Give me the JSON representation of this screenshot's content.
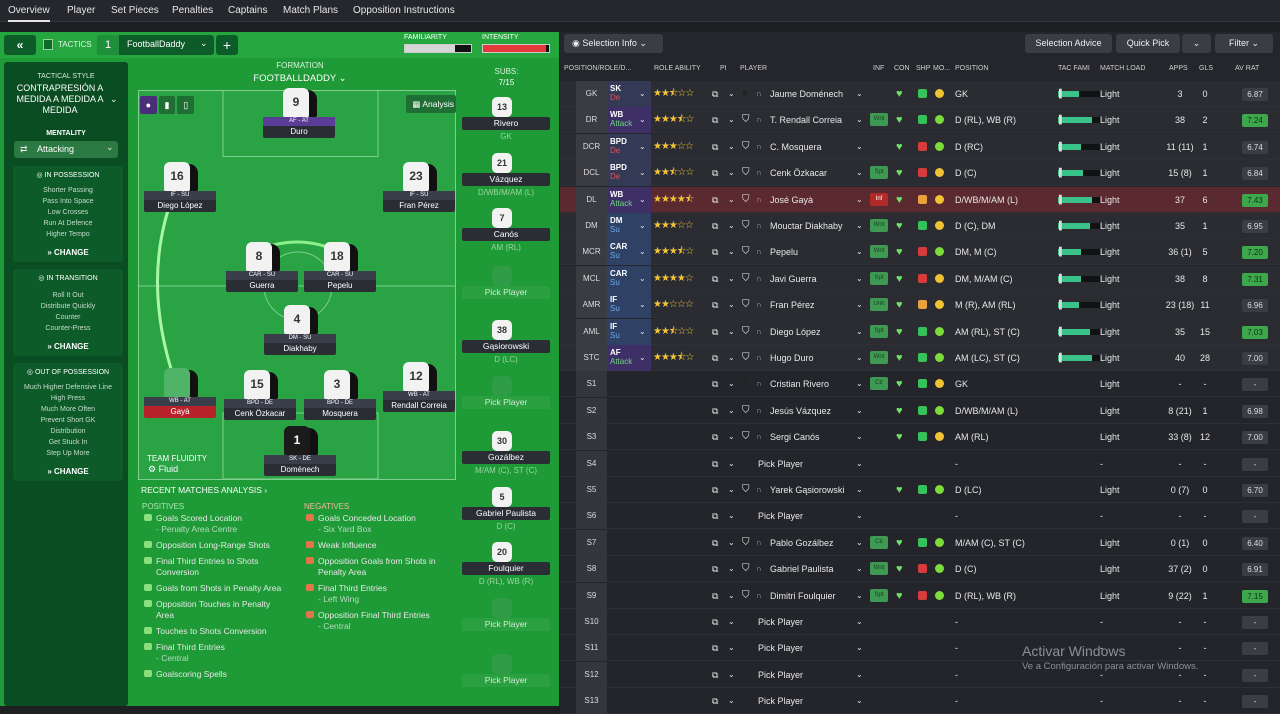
{
  "tabs": [
    "Overview",
    "Player",
    "Set Pieces",
    "Penalties",
    "Captains",
    "Match Plans",
    "Opposition Instructions"
  ],
  "tacticbar": {
    "tactics_label": "TACTICS",
    "slot": "1",
    "tactic_name": "FootballDaddy",
    "familiarity": "FAMILIARITY",
    "intensity": "INTENSITY",
    "familiarity_level": 0.75,
    "intensity_level": 0.95
  },
  "side": {
    "style_header": "TACTICAL STYLE",
    "style_name": "CONTRAPRESIÓN A MEDIDA A MEDIDA A MEDIDA",
    "mentality_header": "MENTALITY",
    "mentality": "Attacking",
    "in_possession": {
      "title": "IN POSSESSION",
      "items": [
        "Shorter Passing",
        "Pass Into Space",
        "Low Crosses",
        "Run At Defence",
        "Higher Tempo"
      ]
    },
    "in_transition": {
      "title": "IN TRANSITION",
      "items": [
        "Roll It Out",
        "Distribute Quickly",
        "Counter",
        "Counter-Press"
      ]
    },
    "out_of_possession": {
      "title": "OUT OF POSSESSION",
      "items": [
        "Much Higher Defensive Line",
        "High Press",
        "Much More Often",
        "Prevent Short GK",
        "Distribution",
        "Get Stuck In",
        "Step Up More"
      ]
    },
    "change": "CHANGE"
  },
  "pitch": {
    "formation_label": "FORMATION",
    "formation_name": "FOOTBALLDADDY",
    "analysis": "Analysis",
    "team_fluidity": "TEAM FLUIDITY",
    "fluidity": "Fluid",
    "players": [
      {
        "num": "9",
        "role": "AF - AT",
        "name": "Duro"
      },
      {
        "num": "16",
        "role": "IF - SU",
        "name": "Diego López"
      },
      {
        "num": "23",
        "role": "IF - SU",
        "name": "Fran Pérez"
      },
      {
        "num": "8",
        "role": "CAR - SU",
        "name": "Guerra"
      },
      {
        "num": "18",
        "role": "CAR - SU",
        "name": "Pepelu"
      },
      {
        "num": "4",
        "role": "DM - SU",
        "name": "Diakhaby"
      },
      {
        "num": "14",
        "role": "WB - AT",
        "name": "Gayà"
      },
      {
        "num": "15",
        "role": "BPD - DE",
        "name": "Cenk Özkacar"
      },
      {
        "num": "3",
        "role": "BPD - DE",
        "name": "Mosquera"
      },
      {
        "num": "12",
        "role": "WB - AT",
        "name": "Rendall Correia"
      },
      {
        "num": "1",
        "role": "SK - DE",
        "name": "Doménech"
      }
    ]
  },
  "subs": {
    "label": "SUBS:",
    "count": "7/15",
    "slots": [
      {
        "num": "13",
        "name": "Rivero",
        "pos": "GK"
      },
      {
        "num": "21",
        "name": "Vázquez",
        "pos": "D/WB/M/AM (L)"
      },
      {
        "num": "7",
        "name": "Canós",
        "pos": "AM (RL)"
      },
      {
        "num": "",
        "name": "Pick Player",
        "pos": ""
      },
      {
        "num": "38",
        "name": "Gąsiorowski",
        "pos": "D (LC)"
      },
      {
        "num": "",
        "name": "Pick Player",
        "pos": ""
      },
      {
        "num": "30",
        "name": "Gozálbez",
        "pos": "M/AM (C), ST (C)"
      },
      {
        "num": "5",
        "name": "Gabriel Paulista",
        "pos": "D (C)"
      },
      {
        "num": "20",
        "name": "Foulquier",
        "pos": "D (RL), WB (R)"
      },
      {
        "num": "",
        "name": "Pick Player",
        "pos": ""
      },
      {
        "num": "",
        "name": "Pick Player",
        "pos": ""
      }
    ]
  },
  "analysis": {
    "title": "RECENT MATCHES ANALYSIS",
    "positives_label": "POSITIVES",
    "negatives_label": "NEGATIVES",
    "positives": [
      [
        "Goals Scored Location",
        "- Penalty Area Centre"
      ],
      [
        "Opposition Long-Range Shots",
        ""
      ],
      [
        "Final Third Entries to Shots",
        "Conversion"
      ],
      [
        "Goals from Shots in Penalty Area",
        ""
      ],
      [
        "Opposition Touches in Penalty",
        "Area"
      ],
      [
        "Touches to Shots Conversion",
        ""
      ],
      [
        "Final Third Entries",
        "- Central"
      ],
      [
        "Goalscoring Spells",
        ""
      ]
    ],
    "negatives": [
      [
        "Goals Conceded Location",
        "- Six Yard Box"
      ],
      [
        "Weak Influence",
        ""
      ],
      [
        "Opposition Goals from Shots in",
        "Penalty Area"
      ],
      [
        "Final Third Entries",
        "- Left Wing"
      ],
      [
        "Opposition Final Third Entries",
        "- Central"
      ]
    ]
  },
  "right": {
    "selection_info": "Selection Info",
    "selection_advice": "Selection Advice",
    "quick_pick": "Quick Pick",
    "filter": "Filter",
    "headers": [
      "POSITION/ROLE/D...",
      "ROLE ABILITY",
      "PI",
      "PLAYER",
      "INF",
      "CON",
      "SHP",
      "MO...",
      "POSITION",
      "TAC FAMI",
      "MATCH LOAD",
      "APPS",
      "GLS",
      "AV RAT"
    ],
    "rows": [
      {
        "pos": "GK",
        "role": "SK",
        "duty": "De",
        "stars": 2.5,
        "name": "Jaume Doménech",
        "inf": "",
        "position": "GK",
        "fam": 0.0,
        "load": "Light",
        "apps": "3",
        "gls": "0",
        "rat": "6.87",
        "ratc": "#3a3d43",
        "gk": true
      },
      {
        "pos": "DR",
        "role": "WB",
        "duty": "Attack",
        "stars": 3.5,
        "name": "T. Rendall Correia",
        "inf": "Wnt",
        "position": "D (RL), WB (R)",
        "fam": 0.0,
        "load": "Light",
        "apps": "38",
        "gls": "2",
        "rat": "7.24",
        "ratc": "#3da84b"
      },
      {
        "pos": "DCR",
        "role": "BPD",
        "duty": "De",
        "stars": 3,
        "name": "C. Mosquera",
        "inf": "",
        "position": "D (RC)",
        "fam": 0.0,
        "load": "Light",
        "apps": "11 (11)",
        "gls": "1",
        "rat": "6.74",
        "ratc": "#3a3d43"
      },
      {
        "pos": "DCL",
        "role": "BPD",
        "duty": "De",
        "stars": 2.5,
        "name": "Cenk Özkacar",
        "inf": "Spt",
        "position": "D (C)",
        "fam": 0.0,
        "load": "Light",
        "apps": "15 (8)",
        "gls": "1",
        "rat": "6.84",
        "ratc": "#3a3d43"
      },
      {
        "pos": "DL",
        "role": "WB",
        "duty": "Attack",
        "stars": 4.5,
        "name": "José Gayà",
        "inf": "Inf",
        "position": "D/WB/M/AM (L)",
        "fam": 0.0,
        "load": "Light",
        "apps": "37",
        "gls": "6",
        "rat": "7.43",
        "ratc": "#3da84b",
        "hl": true
      },
      {
        "pos": "DM",
        "role": "DM",
        "duty": "Su",
        "stars": 3,
        "name": "Mouctar Diakhaby",
        "inf": "Wnt",
        "position": "D (C), DM",
        "fam": 0.0,
        "load": "Light",
        "apps": "35",
        "gls": "1",
        "rat": "6.95",
        "ratc": "#3a3d43"
      },
      {
        "pos": "MCR",
        "role": "CAR",
        "duty": "Su",
        "stars": 3.5,
        "name": "Pepelu",
        "inf": "Wnt",
        "position": "DM, M (C)",
        "fam": 0.0,
        "load": "Light",
        "apps": "36 (1)",
        "gls": "5",
        "rat": "7.20",
        "ratc": "#3da84b"
      },
      {
        "pos": "MCL",
        "role": "CAR",
        "duty": "Su",
        "stars": 4,
        "name": "Javi Guerra",
        "inf": "Spt",
        "position": "DM, M/AM (C)",
        "fam": 0.0,
        "load": "Light",
        "apps": "38",
        "gls": "8",
        "rat": "7.31",
        "ratc": "#3da84b"
      },
      {
        "pos": "AMR",
        "role": "IF",
        "duty": "Su",
        "stars": 2,
        "name": "Fran Pérez",
        "inf": "Unh",
        "position": "M (R), AM (RL)",
        "fam": 0.0,
        "load": "Light",
        "apps": "23 (18)",
        "gls": "11",
        "rat": "6.96",
        "ratc": "#3a3d43"
      },
      {
        "pos": "AML",
        "role": "IF",
        "duty": "Su",
        "stars": 2.5,
        "name": "Diego López",
        "inf": "Spt",
        "position": "AM (RL), ST (C)",
        "fam": 0.0,
        "load": "Light",
        "apps": "35",
        "gls": "15",
        "rat": "7.03",
        "ratc": "#3da84b"
      },
      {
        "pos": "STC",
        "role": "AF",
        "duty": "Attack",
        "stars": 3.5,
        "name": "Hugo Duro",
        "inf": "Wnt",
        "position": "AM (LC), ST (C)",
        "fam": 0.0,
        "load": "Light",
        "apps": "40",
        "gls": "28",
        "rat": "7.00",
        "ratc": "#3a3d43"
      },
      {
        "pos": "S1",
        "role": "",
        "duty": "",
        "stars": 0,
        "name": "Cristian Rivero",
        "inf": "Ctr",
        "position": "GK",
        "fam": -1,
        "load": "Light",
        "apps": "-",
        "gls": "-",
        "rat": "-",
        "ratc": "#3a3d43",
        "gk": true
      },
      {
        "pos": "S2",
        "role": "",
        "duty": "",
        "stars": 0,
        "name": "Jesús Vázquez",
        "inf": "",
        "position": "D/WB/M/AM (L)",
        "fam": -1,
        "load": "Light",
        "apps": "8 (21)",
        "gls": "1",
        "rat": "6.98",
        "ratc": "#3a3d43"
      },
      {
        "pos": "S3",
        "role": "",
        "duty": "",
        "stars": 0,
        "name": "Sergi Canós",
        "inf": "",
        "position": "AM (RL)",
        "fam": -1,
        "load": "Light",
        "apps": "33 (8)",
        "gls": "12",
        "rat": "7.00",
        "ratc": "#3a3d43"
      },
      {
        "pos": "S4",
        "role": "",
        "duty": "",
        "stars": 0,
        "name": "Pick Player",
        "inf": "",
        "position": "-",
        "fam": -1,
        "load": "-",
        "apps": "-",
        "gls": "-",
        "rat": "-",
        "ratc": "#3a3d43",
        "empty": true
      },
      {
        "pos": "S5",
        "role": "",
        "duty": "",
        "stars": 0,
        "name": "Yarek Gąsiorowski",
        "inf": "",
        "position": "D (LC)",
        "fam": -1,
        "load": "Light",
        "apps": "0 (7)",
        "gls": "0",
        "rat": "6.70",
        "ratc": "#3a3d43"
      },
      {
        "pos": "S6",
        "role": "",
        "duty": "",
        "stars": 0,
        "name": "Pick Player",
        "inf": "",
        "position": "-",
        "fam": -1,
        "load": "-",
        "apps": "-",
        "gls": "-",
        "rat": "-",
        "ratc": "#3a3d43",
        "empty": true
      },
      {
        "pos": "S7",
        "role": "",
        "duty": "",
        "stars": 0,
        "name": "Pablo Gozálbez",
        "inf": "Ctr",
        "position": "M/AM (C), ST (C)",
        "fam": -1,
        "load": "Light",
        "apps": "0 (1)",
        "gls": "0",
        "rat": "6.40",
        "ratc": "#3a3d43"
      },
      {
        "pos": "S8",
        "role": "",
        "duty": "",
        "stars": 0,
        "name": "Gabriel Paulista",
        "inf": "Wnt",
        "position": "D (C)",
        "fam": -1,
        "load": "Light",
        "apps": "37 (2)",
        "gls": "0",
        "rat": "6.91",
        "ratc": "#3a3d43"
      },
      {
        "pos": "S9",
        "role": "",
        "duty": "",
        "stars": 0,
        "name": "Dimitri Foulquier",
        "inf": "Spt",
        "position": "D (RL), WB (R)",
        "fam": -1,
        "load": "Light",
        "apps": "9 (22)",
        "gls": "1",
        "rat": "7.15",
        "ratc": "#3da84b"
      },
      {
        "pos": "S10",
        "role": "",
        "duty": "",
        "stars": 0,
        "name": "Pick Player",
        "inf": "",
        "position": "-",
        "fam": -1,
        "load": "-",
        "apps": "-",
        "gls": "-",
        "rat": "-",
        "ratc": "#3a3d43",
        "empty": true
      },
      {
        "pos": "S11",
        "role": "",
        "duty": "",
        "stars": 0,
        "name": "Pick Player",
        "inf": "",
        "position": "-",
        "fam": -1,
        "load": "-",
        "apps": "-",
        "gls": "-",
        "rat": "-",
        "ratc": "#3a3d43",
        "empty": true
      },
      {
        "pos": "S12",
        "role": "",
        "duty": "",
        "stars": 0,
        "name": "Pick Player",
        "inf": "",
        "position": "-",
        "fam": -1,
        "load": "-",
        "apps": "-",
        "gls": "-",
        "rat": "-",
        "ratc": "#3a3d43",
        "empty": true
      },
      {
        "pos": "S13",
        "role": "",
        "duty": "",
        "stars": 0,
        "name": "Pick Player",
        "inf": "",
        "position": "-",
        "fam": -1,
        "load": "-",
        "apps": "-",
        "gls": "-",
        "rat": "-",
        "ratc": "#3a3d43",
        "empty": true
      }
    ]
  },
  "watermark": {
    "title": "Activar Windows",
    "sub": "Ve a Configuración para activar Windows."
  }
}
